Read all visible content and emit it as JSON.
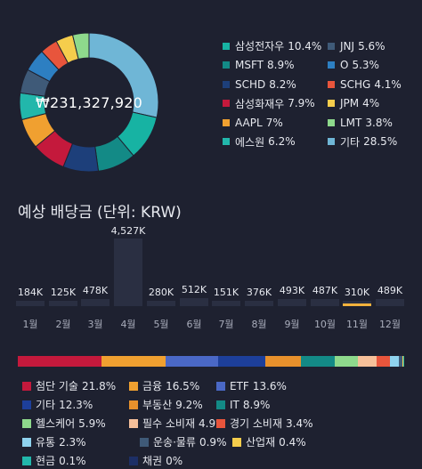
{
  "portfolio": {
    "total": "₩231,327,920",
    "holdings": [
      {
        "name": "삼성전자우",
        "pct": "10.4%",
        "value": 10.4,
        "color": "#17b3a3"
      },
      {
        "name": "JNJ",
        "pct": "5.6%",
        "value": 5.6,
        "color": "#3f5a78"
      },
      {
        "name": "MSFT",
        "pct": "8.9%",
        "value": 8.9,
        "color": "#138a86"
      },
      {
        "name": "O",
        "pct": "5.3%",
        "value": 5.3,
        "color": "#2d7fc2"
      },
      {
        "name": "SCHD",
        "pct": "8.2%",
        "value": 8.2,
        "color": "#1d3f7a"
      },
      {
        "name": "SCHG",
        "pct": "4.1%",
        "value": 4.1,
        "color": "#e8553c"
      },
      {
        "name": "삼성화재우",
        "pct": "7.9%",
        "value": 7.9,
        "color": "#c4193c"
      },
      {
        "name": "JPM",
        "pct": "4%",
        "value": 4.0,
        "color": "#f5cd4c"
      },
      {
        "name": "AAPL",
        "pct": "7%",
        "value": 7.0,
        "color": "#f0a030"
      },
      {
        "name": "LMT",
        "pct": "3.8%",
        "value": 3.8,
        "color": "#8ed98c"
      },
      {
        "name": "에스원",
        "pct": "6.2%",
        "value": 6.2,
        "color": "#22b7ab"
      },
      {
        "name": "기타",
        "pct": "28.5%",
        "value": 28.5,
        "color": "#6fb6d6"
      }
    ]
  },
  "dividends": {
    "title": "예상 배당금 (단위: KRW)",
    "highlight_month_index": 10,
    "months": [
      {
        "label": "1월",
        "amount": "184K",
        "value": 184
      },
      {
        "label": "2월",
        "amount": "125K",
        "value": 125
      },
      {
        "label": "3월",
        "amount": "478K",
        "value": 478
      },
      {
        "label": "4월",
        "amount": "4,527K",
        "value": 4527
      },
      {
        "label": "5월",
        "amount": "280K",
        "value": 280
      },
      {
        "label": "6월",
        "amount": "512K",
        "value": 512
      },
      {
        "label": "7월",
        "amount": "151K",
        "value": 151
      },
      {
        "label": "8월",
        "amount": "376K",
        "value": 376
      },
      {
        "label": "9월",
        "amount": "493K",
        "value": 493
      },
      {
        "label": "10월",
        "amount": "487K",
        "value": 487
      },
      {
        "label": "11월",
        "amount": "310K",
        "value": 310
      },
      {
        "label": "12월",
        "amount": "489K",
        "value": 489
      }
    ]
  },
  "sectors": [
    {
      "name": "첨단 기술",
      "pct": "21.8%",
      "value": 21.8,
      "color": "#c4193c"
    },
    {
      "name": "금융",
      "pct": "16.5%",
      "value": 16.5,
      "color": "#f0a030"
    },
    {
      "name": "ETF",
      "pct": "13.6%",
      "value": 13.6,
      "color": "#4a68c6"
    },
    {
      "name": "기타",
      "pct": "12.3%",
      "value": 12.3,
      "color": "#1d3f9a"
    },
    {
      "name": "부동산",
      "pct": "9.2%",
      "value": 9.2,
      "color": "#e8912c"
    },
    {
      "name": "IT",
      "pct": "8.9%",
      "value": 8.9,
      "color": "#138a86"
    },
    {
      "name": "헬스케어",
      "pct": "5.9%",
      "value": 5.9,
      "color": "#8ed98c"
    },
    {
      "name": "필수 소비재",
      "pct": "4.9%",
      "value": 4.9,
      "color": "#f6c09a"
    },
    {
      "name": "경기 소비재",
      "pct": "3.4%",
      "value": 3.4,
      "color": "#e8553c"
    },
    {
      "name": "유통",
      "pct": "2.3%",
      "value": 2.3,
      "color": "#8fd3ee"
    },
    {
      "name": "운송·물류",
      "pct": "0.9%",
      "value": 0.9,
      "color": "#3f5a78"
    },
    {
      "name": "산업재",
      "pct": "0.4%",
      "value": 0.4,
      "color": "#f5cd4c"
    },
    {
      "name": "현금",
      "pct": "0.1%",
      "value": 0.1,
      "color": "#22b7ab"
    },
    {
      "name": "채권",
      "pct": "0%",
      "value": 0.0,
      "color": "#1d2f66"
    }
  ]
}
